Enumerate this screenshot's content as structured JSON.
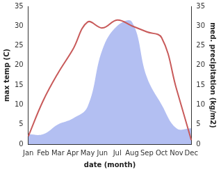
{
  "chart_data": {
    "type": "line",
    "x_label": "date (month)",
    "y_label": "max temp (C)",
    "y2_label": "med. precipitation (kg/m2)",
    "categories": [
      "Jan",
      "Feb",
      "Mar",
      "Apr",
      "May",
      "Jun",
      "Jul",
      "Aug",
      "Sep",
      "Oct",
      "Nov",
      "Dec"
    ],
    "series": [
      {
        "name": "max temp",
        "type": "line",
        "color": "#c85a5a",
        "axis": "y",
        "values": [
          2,
          11,
          18,
          24,
          31,
          29.5,
          31.5,
          30,
          28.5,
          27,
          14,
          1
        ]
      },
      {
        "name": "med. precipitation",
        "type": "area",
        "color": "#b3bff2",
        "axis": "y2",
        "values": [
          2.5,
          2.5,
          5,
          6.5,
          9.5,
          24,
          30,
          31,
          17,
          10,
          4,
          4
        ]
      }
    ],
    "ylim": [
      0,
      35
    ],
    "yticks": [
      0,
      5,
      10,
      15,
      20,
      25,
      30,
      35
    ],
    "y2lim": [
      0,
      35
    ],
    "y2ticks": [
      0,
      5,
      10,
      15,
      20,
      25,
      30,
      35
    ],
    "grid": false
  }
}
